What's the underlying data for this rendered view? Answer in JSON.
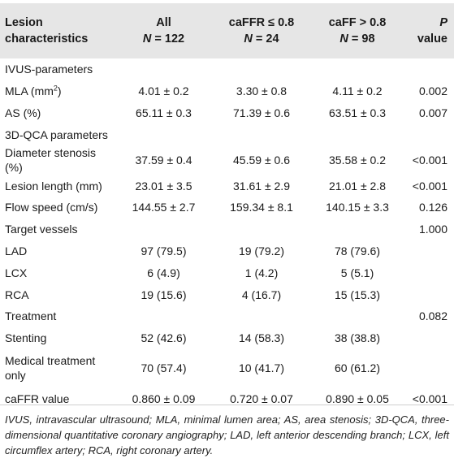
{
  "header": {
    "col1_line1": "Lesion",
    "col1_line2": "characteristics",
    "col2_line1": "All",
    "col2_line2_var": "N",
    "col2_line2_val": " = 122",
    "col3_line1": "caFFR ≤ 0.8",
    "col3_line2_var": "N",
    "col3_line2_val": " = 24",
    "col4_line1": "caFF > 0.8",
    "col4_line2_var": "N",
    "col4_line2_val": " = 98",
    "col5_var": "P",
    "col5_rest": " value"
  },
  "rows": [
    {
      "label": "IVUS-parameters",
      "all": "",
      "le": "",
      "gt": "",
      "p": ""
    },
    {
      "label": "MLA (mm",
      "sup": "2",
      "label_tail": ")",
      "all": "4.01 ± 0.2",
      "le": "3.30 ± 0.8",
      "gt": "4.11 ± 0.2",
      "p": "0.002"
    },
    {
      "label": "AS (%)",
      "all": "65.11 ± 0.3",
      "le": "71.39 ± 0.6",
      "gt": "63.51 ± 0.3",
      "p": "0.007"
    },
    {
      "label": "3D-QCA parameters",
      "all": "",
      "le": "",
      "gt": "",
      "p": ""
    },
    {
      "label": "Diameter stenosis (%)",
      "all": "37.59 ± 0.4",
      "le": "45.59 ± 0.6",
      "gt": "35.58 ± 0.2",
      "p": "<0.001"
    },
    {
      "label": "Lesion length (mm)",
      "all": "23.01 ± 3.5",
      "le": "31.61 ± 2.9",
      "gt": "21.01 ± 2.8",
      "p": "<0.001"
    },
    {
      "label": "Flow speed (cm/s)",
      "all": "144.55 ± 2.7",
      "le": "159.34 ± 8.1",
      "gt": "140.15 ± 3.3",
      "p": "0.126"
    },
    {
      "label": "Target vessels",
      "all": "",
      "le": "",
      "gt": "",
      "p": "1.000"
    },
    {
      "label": "LAD",
      "all": "97 (79.5)",
      "le": "19 (79.2)",
      "gt": "78 (79.6)",
      "p": ""
    },
    {
      "label": "LCX",
      "all": "6 (4.9)",
      "le": "1 (4.2)",
      "gt": "5 (5.1)",
      "p": ""
    },
    {
      "label": "RCA",
      "all": "19 (15.6)",
      "le": "4 (16.7)",
      "gt": "15 (15.3)",
      "p": ""
    },
    {
      "label": "Treatment",
      "all": "",
      "le": "",
      "gt": "",
      "p": "0.082"
    },
    {
      "label": "Stenting",
      "all": "52 (42.6)",
      "le": "14 (58.3)",
      "gt": "38 (38.8)",
      "p": ""
    },
    {
      "label": "Medical treatment only",
      "all": "70 (57.4)",
      "le": "10 (41.7)",
      "gt": "60 (61.2)",
      "p": ""
    },
    {
      "label": "caFFR value",
      "all": "0.860 ± 0.09",
      "le": "0.720 ± 0.07",
      "gt": "0.890 ± 0.05",
      "p": "<0.001"
    }
  ],
  "footnote": "IVUS, intravascular ultrasound; MLA, minimal lumen area; AS, area stenosis; 3D-QCA, three-dimensional quantitative coronary angiography; LAD, left anterior descending branch; LCX, left circumflex artery; RCA, right coronary artery."
}
